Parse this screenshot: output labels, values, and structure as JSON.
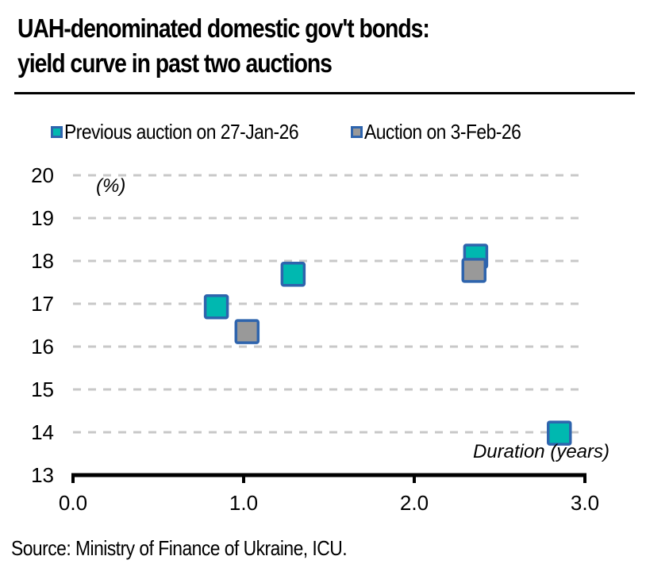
{
  "title_line1": "UAH-denominated domestic gov't bonds:",
  "title_line2": "yield curve in past two auctions",
  "source": "Source: Ministry of Finance of Ukraine, ICU.",
  "legend": [
    {
      "label": "Previous auction on 27-Jan-26",
      "fill": "#00b8b0",
      "stroke": "#2e64ad"
    },
    {
      "label": "Auction on 3-Feb-26",
      "fill": "#999999",
      "stroke": "#2e64ad"
    }
  ],
  "chart_data": {
    "type": "scatter",
    "title": "UAH-denominated domestic gov't bonds: yield curve in past two auctions",
    "xlabel": "Duration (years)",
    "ylabel": "(%)",
    "xlim": [
      0,
      3
    ],
    "ylim": [
      13,
      20
    ],
    "x_ticks": [
      "0.0",
      "1.0",
      "2.0",
      "3.0"
    ],
    "x_tick_values": [
      0,
      1,
      2,
      3
    ],
    "y_ticks": [
      "13",
      "14",
      "15",
      "16",
      "17",
      "18",
      "19",
      "20"
    ],
    "y_tick_values": [
      13,
      14,
      15,
      16,
      17,
      18,
      19,
      20
    ],
    "grid": "horizontal dashed",
    "legend_position": "top",
    "series": [
      {
        "name": "Previous auction on 27-Jan-26",
        "color": "#00b8b0",
        "edge_color": "#2e64ad",
        "points": [
          {
            "x": 0.84,
            "y": 16.93
          },
          {
            "x": 1.29,
            "y": 17.69
          },
          {
            "x": 2.36,
            "y": 18.11
          },
          {
            "x": 2.85,
            "y": 13.98
          }
        ]
      },
      {
        "name": "Auction on 3-Feb-26",
        "color": "#999999",
        "edge_color": "#2e64ad",
        "points": [
          {
            "x": 1.02,
            "y": 16.35
          },
          {
            "x": 2.35,
            "y": 17.78
          }
        ]
      }
    ]
  }
}
